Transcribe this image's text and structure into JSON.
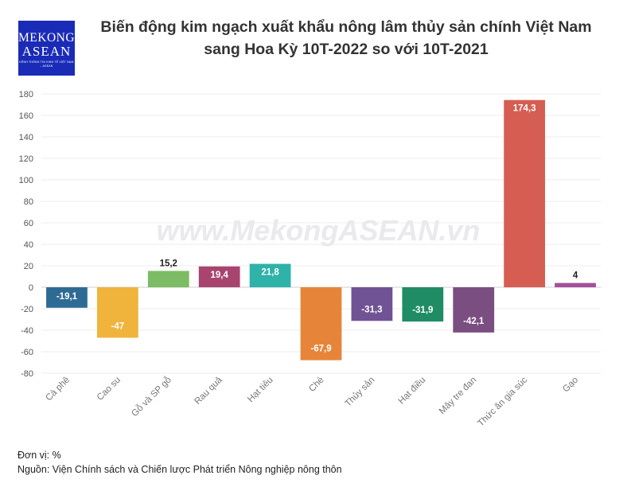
{
  "logo": {
    "line1": "MEKONG",
    "line2": "ASEAN",
    "tagline": "KÊNH THÔNG TIN KINH TẾ VIỆT NAM – ASEAN"
  },
  "title_line1": "Biến động kim ngạch xuất khẩu nông lâm thủy sản chính Việt Nam",
  "title_line2": "sang Hoa Kỳ 10T-2022 so với 10T-2021",
  "watermark": "www.MekongASEAN.vn",
  "unit_note": "Đơn vị: %",
  "source_note": "Nguồn: Viện Chính sách và Chiến lược Phát triển Nông nghiệp nông thôn",
  "chart_data": {
    "type": "bar",
    "categories": [
      "Cà phê",
      "Cao su",
      "Gỗ và SP gỗ",
      "Rau quả",
      "Hạt tiêu",
      "Chè",
      "Thủy sản",
      "Hạt điều",
      "Mây tre đan",
      "Thức ăn gia súc",
      "Gạo"
    ],
    "values": [
      -19.1,
      -47,
      15.2,
      19.4,
      21.8,
      -67.9,
      -31.3,
      -31.9,
      -42.1,
      174.3,
      4
    ],
    "value_labels": [
      "-19,1",
      "-47",
      "15,2",
      "19,4",
      "21,8",
      "-67,9",
      "-31,3",
      "-31,9",
      "-42,1",
      "174,3",
      "4"
    ],
    "colors": [
      "#2e6b94",
      "#f0b43c",
      "#7cbc64",
      "#a8456e",
      "#2fb2a8",
      "#e6853a",
      "#6f5394",
      "#1f8c66",
      "#7a4e80",
      "#d65d52",
      "#a5509a"
    ],
    "ylim": [
      -80,
      180
    ],
    "yticks": [
      -80,
      -60,
      -40,
      -20,
      0,
      20,
      40,
      60,
      80,
      100,
      120,
      140,
      160,
      180
    ],
    "grid": true
  }
}
